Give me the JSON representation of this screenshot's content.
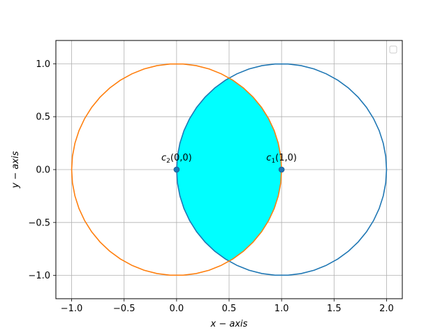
{
  "chart_data": {
    "type": "line",
    "xlabel": "x − axis",
    "ylabel": "y − axis",
    "xlim": [
      -1.15,
      2.15
    ],
    "ylim": [
      -1.22,
      1.22
    ],
    "x_ticks": [
      -1.0,
      -0.5,
      0.0,
      0.5,
      1.0,
      1.5,
      2.0
    ],
    "x_tick_labels": [
      "−1.0",
      "−0.5",
      "0.0",
      "0.5",
      "1.0",
      "1.5",
      "2.0"
    ],
    "y_ticks": [
      -1.0,
      -0.5,
      0.0,
      0.5,
      1.0
    ],
    "y_tick_labels": [
      "−1.0",
      "−0.5",
      "0.0",
      "0.5",
      "1.0"
    ],
    "grid": true,
    "legend": {
      "placement": "upper-right",
      "entries": []
    },
    "series": [
      {
        "name": "c1",
        "shape": "circle",
        "center": [
          1,
          0
        ],
        "radius": 1,
        "color": "#1f77b4"
      },
      {
        "name": "c2",
        "shape": "circle",
        "center": [
          0,
          0
        ],
        "radius": 1,
        "color": "#ff7f0e"
      }
    ],
    "fill": {
      "region": "intersection of c1 and c2",
      "x_range": [
        0,
        1
      ],
      "color": "#00ffff"
    },
    "points": [
      {
        "x": 0,
        "y": 0,
        "color": "#1f77b4"
      },
      {
        "x": 1,
        "y": 0,
        "color": "#1f77b4"
      }
    ],
    "annotations": [
      {
        "base": "c",
        "sub": "2",
        "rest": "(0,0)",
        "x": 0,
        "y": 0
      },
      {
        "base": "c",
        "sub": "1",
        "rest": "(1,0)",
        "x": 1,
        "y": 0
      }
    ]
  }
}
